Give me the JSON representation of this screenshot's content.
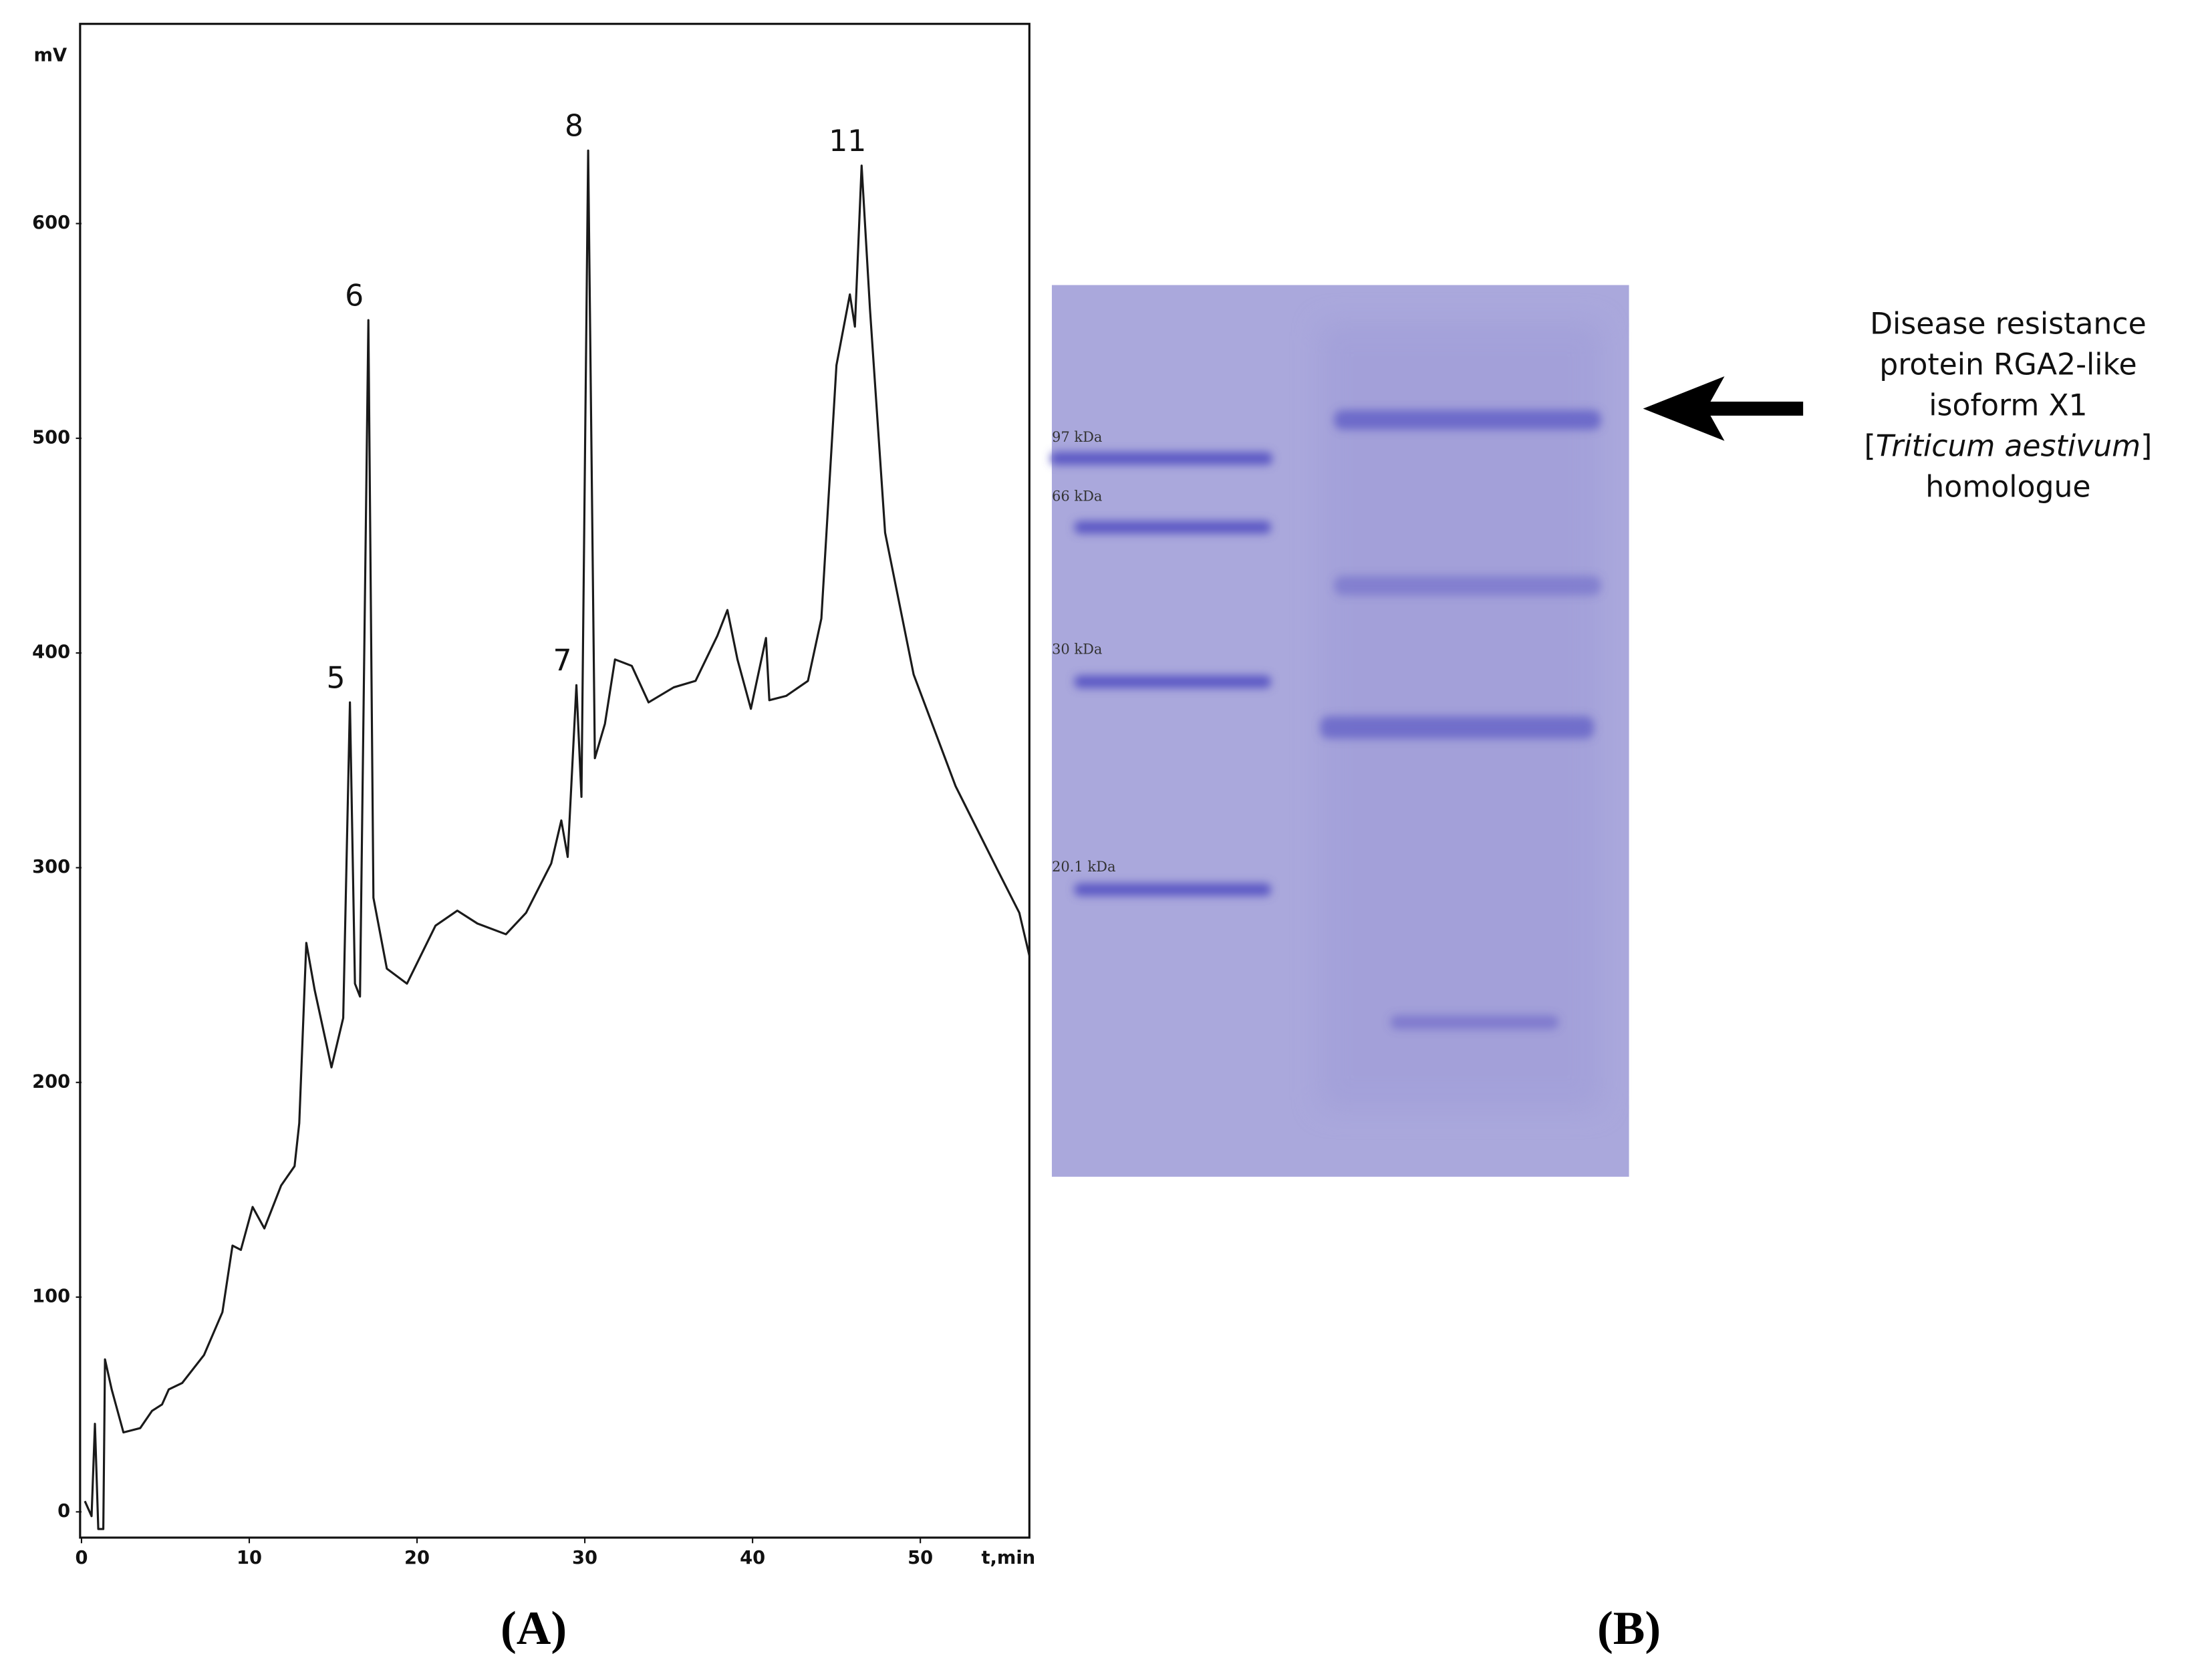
{
  "chart_data": {
    "type": "line",
    "x_label": "t,min",
    "y_label": "mV",
    "x": [
      0.2,
      0.6,
      0.8,
      1,
      1.3,
      1.4,
      1.8,
      2.5,
      3.5,
      4.2,
      4.8,
      5.2,
      6,
      7.3,
      8.4,
      9,
      9.5,
      10.2,
      10.9,
      11.9,
      12.7,
      12.98,
      13.4,
      13.9,
      14.9,
      15.6,
      16,
      16.3,
      16.6,
      17.1,
      17.4,
      18.2,
      19.4,
      21.1,
      22.4,
      23.6,
      25.3,
      26.5,
      28,
      28.6,
      28.98,
      29.5,
      29.8,
      30.2,
      30.6,
      31.2,
      31.8,
      32.8,
      33.8,
      35.3,
      36.6,
      37.9,
      38.5,
      39.1,
      39.9,
      40.8,
      41,
      42,
      43.3,
      44.1,
      45,
      45.8,
      46.1,
      46.5,
      47,
      47.9,
      49.6,
      52.1,
      54.6,
      55.9,
      56.5
    ],
    "values": [
      5,
      -2,
      41,
      -8,
      -8,
      71,
      57,
      37,
      39,
      47,
      50,
      57,
      60,
      73,
      93,
      124,
      122,
      142,
      132,
      152,
      161,
      181,
      265,
      243,
      207,
      230,
      377,
      246,
      240,
      555,
      286,
      253,
      246,
      273,
      280,
      274,
      269,
      279,
      302,
      322,
      305,
      385,
      333,
      634,
      351,
      367,
      397,
      394,
      377,
      384,
      387,
      408,
      420,
      397,
      374,
      407,
      378,
      380,
      387,
      416,
      534,
      567,
      552,
      627,
      560,
      456,
      390,
      338,
      299,
      279,
      259
    ],
    "color": "#1a1a1a",
    "xlim": [
      0,
      56.5
    ],
    "ylim": [
      -12,
      693
    ],
    "xticks": [
      0,
      10,
      20,
      30,
      40,
      50
    ],
    "yticks": [
      0,
      100,
      200,
      300,
      400,
      500,
      600
    ],
    "annotations": [
      {
        "text": "5",
        "x": 16,
        "y": 377
      },
      {
        "text": "6",
        "x": 17.1,
        "y": 555
      },
      {
        "text": "7",
        "x": 29.5,
        "y": 385
      },
      {
        "text": "8",
        "x": 30.2,
        "y": 634
      },
      {
        "text": "11",
        "x": 46.5,
        "y": 627
      }
    ]
  },
  "gel": {
    "markers": [
      "97 kDa",
      "66 kDa",
      "30 kDa",
      "20.1 kDa"
    ],
    "note_lines": [
      "Disease resistance",
      "protein RGA2-like",
      "isoform X1"
    ],
    "species_line": {
      "open": "[",
      "italic": "Triticum aestivum",
      "close": "]"
    },
    "note_last": "homologue"
  },
  "panel_labels": [
    "(A)",
    "(B)"
  ]
}
